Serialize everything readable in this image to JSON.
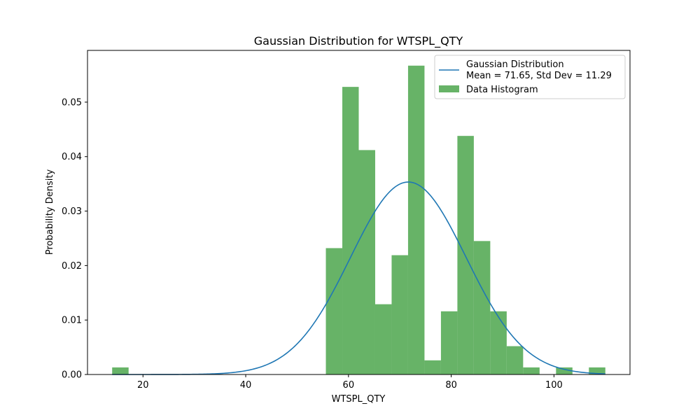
{
  "chart_data": {
    "type": "bar",
    "title": "Gaussian Distribution for WTSPL_QTY",
    "xlabel": "WTSPL_QTY",
    "ylabel": "Probability Density",
    "xlim": [
      9.2,
      114.8
    ],
    "ylim": [
      0,
      0.0595
    ],
    "xticks": [
      {
        "value": 20,
        "label": "20"
      },
      {
        "value": 40,
        "label": "40"
      },
      {
        "value": 60,
        "label": "60"
      },
      {
        "value": 80,
        "label": "80"
      },
      {
        "value": 100,
        "label": "100"
      }
    ],
    "yticks": [
      {
        "value": 0.0,
        "label": "0.00"
      },
      {
        "value": 0.01,
        "label": "0.01"
      },
      {
        "value": 0.02,
        "label": "0.02"
      },
      {
        "value": 0.03,
        "label": "0.03"
      },
      {
        "value": 0.04,
        "label": "0.04"
      },
      {
        "value": 0.05,
        "label": "0.05"
      }
    ],
    "grid": false,
    "legend_position": "top-right",
    "histogram": {
      "name": "Data Histogram",
      "color": "#4ca64c",
      "bins": [
        {
          "x0": 14.0,
          "x1": 17.2,
          "value": 0.0013
        },
        {
          "x0": 17.2,
          "x1": 20.4,
          "value": 0.0
        },
        {
          "x0": 20.4,
          "x1": 23.6,
          "value": 0.0
        },
        {
          "x0": 23.6,
          "x1": 26.8,
          "value": 0.0
        },
        {
          "x0": 26.8,
          "x1": 30.0,
          "value": 0.0
        },
        {
          "x0": 30.0,
          "x1": 33.2,
          "value": 0.0
        },
        {
          "x0": 33.2,
          "x1": 36.4,
          "value": 0.0
        },
        {
          "x0": 36.4,
          "x1": 39.6,
          "value": 0.0
        },
        {
          "x0": 39.6,
          "x1": 42.8,
          "value": 0.0
        },
        {
          "x0": 42.8,
          "x1": 46.0,
          "value": 0.0
        },
        {
          "x0": 46.0,
          "x1": 49.2,
          "value": 0.0
        },
        {
          "x0": 49.2,
          "x1": 52.4,
          "value": 0.0
        },
        {
          "x0": 52.4,
          "x1": 55.6,
          "value": 0.0
        },
        {
          "x0": 55.6,
          "x1": 58.8,
          "value": 0.0232
        },
        {
          "x0": 58.8,
          "x1": 62.0,
          "value": 0.0528
        },
        {
          "x0": 62.0,
          "x1": 65.2,
          "value": 0.0412
        },
        {
          "x0": 65.2,
          "x1": 68.4,
          "value": 0.0129
        },
        {
          "x0": 68.4,
          "x1": 71.6,
          "value": 0.0219
        },
        {
          "x0": 71.6,
          "x1": 74.8,
          "value": 0.0567
        },
        {
          "x0": 74.8,
          "x1": 78.0,
          "value": 0.0026
        },
        {
          "x0": 78.0,
          "x1": 81.2,
          "value": 0.0116
        },
        {
          "x0": 81.2,
          "x1": 84.4,
          "value": 0.0438
        },
        {
          "x0": 84.4,
          "x1": 87.6,
          "value": 0.0245
        },
        {
          "x0": 87.6,
          "x1": 90.8,
          "value": 0.0116
        },
        {
          "x0": 90.8,
          "x1": 94.0,
          "value": 0.0052
        },
        {
          "x0": 94.0,
          "x1": 97.2,
          "value": 0.0013
        },
        {
          "x0": 97.2,
          "x1": 100.4,
          "value": 0.0
        },
        {
          "x0": 100.4,
          "x1": 103.6,
          "value": 0.0013
        },
        {
          "x0": 103.6,
          "x1": 106.8,
          "value": 0.0
        },
        {
          "x0": 106.8,
          "x1": 110.0,
          "value": 0.0013
        }
      ]
    },
    "gaussian": {
      "name": "Gaussian Distribution",
      "mean": 71.65,
      "std": 11.29,
      "x_range": [
        14.0,
        110.0
      ],
      "color": "#1f77b4"
    },
    "legend": [
      {
        "kind": "line",
        "label_line1": "Gaussian Distribution",
        "label_line2": "Mean = 71.65, Std Dev = 11.29",
        "color": "#1f77b4"
      },
      {
        "kind": "patch",
        "label_line1": "Data Histogram",
        "color": "#4ca64c"
      }
    ]
  }
}
